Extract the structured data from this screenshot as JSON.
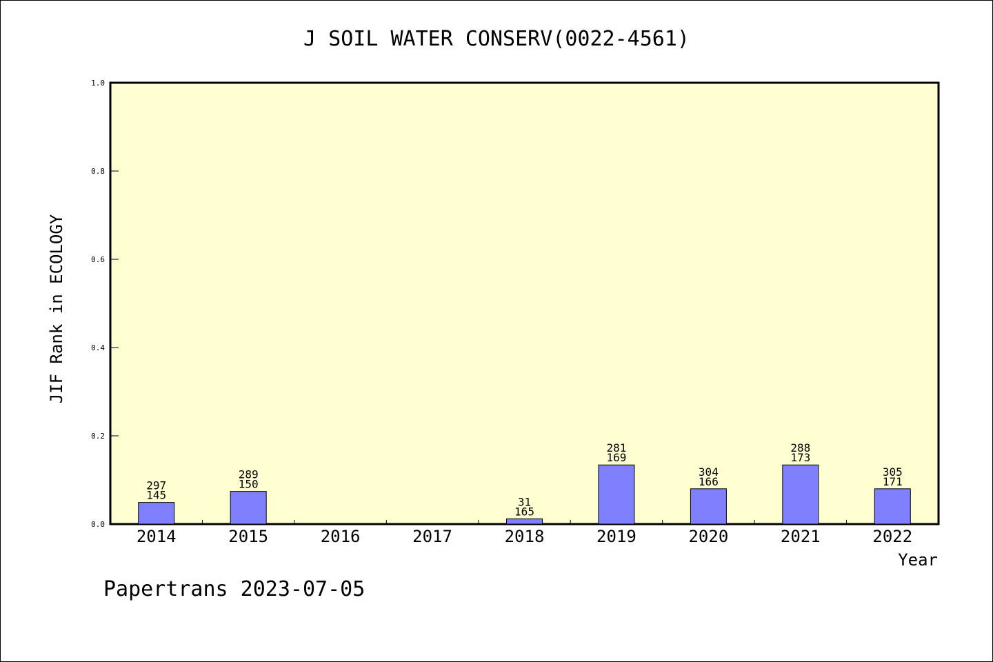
{
  "chart_data": {
    "type": "bar",
    "title": "J SOIL WATER CONSERV(0022-4561)",
    "xlabel": "Year",
    "ylabel": "JIF Rank in ECOLOGY",
    "ylim": [
      0,
      1.0
    ],
    "yticks": [
      "0.0",
      "0.2",
      "0.4",
      "0.6",
      "0.8",
      "1.0"
    ],
    "categories": [
      "2014",
      "2015",
      "2016",
      "2017",
      "2018",
      "2019",
      "2020",
      "2021",
      "2022"
    ],
    "values": [
      0.049,
      0.074,
      null,
      null,
      0.012,
      0.134,
      0.08,
      0.134,
      0.08
    ],
    "rank_total": [
      "297",
      "289",
      "",
      "",
      "31",
      "281",
      "304",
      "288",
      "305"
    ],
    "rank": [
      "145",
      "150",
      "",
      "",
      "165",
      "169",
      "166",
      "173",
      "171"
    ],
    "grid": false,
    "legend": "none",
    "colors": {
      "plot_background": "#ffffd2",
      "bar_fill": "#8080ff",
      "bar_stroke": "#000000"
    }
  },
  "footer": "Papertrans 2023-07-05"
}
